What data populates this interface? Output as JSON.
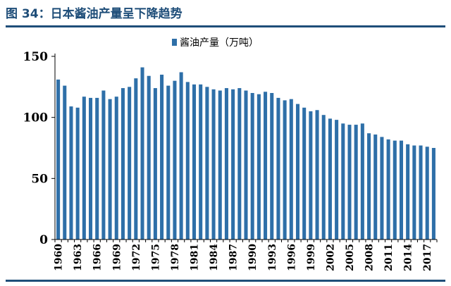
{
  "figure": {
    "title": "图 34：日本酱油产量呈下降趋势"
  },
  "colors": {
    "title": "#1f4e79",
    "bar": "#2e6fa8",
    "axis": "#000000"
  },
  "chart_data": {
    "type": "bar",
    "title": "",
    "xlabel": "",
    "ylabel": "",
    "ylim": [
      0,
      150
    ],
    "yticks": [
      0,
      50,
      100,
      150
    ],
    "grid": false,
    "legend": "top-center",
    "x_tick_labels": [
      "1960",
      "1963",
      "1966",
      "1969",
      "1972",
      "1975",
      "1978",
      "1981",
      "1984",
      "1987",
      "1990",
      "1993",
      "1996",
      "1999",
      "2002",
      "2005",
      "2008",
      "2011",
      "2014",
      "2017"
    ],
    "categories": [
      "1960",
      "1961",
      "1962",
      "1963",
      "1964",
      "1965",
      "1966",
      "1967",
      "1968",
      "1969",
      "1970",
      "1971",
      "1972",
      "1973",
      "1974",
      "1975",
      "1976",
      "1977",
      "1978",
      "1979",
      "1980",
      "1981",
      "1982",
      "1983",
      "1984",
      "1985",
      "1986",
      "1987",
      "1988",
      "1989",
      "1990",
      "1991",
      "1992",
      "1993",
      "1994",
      "1995",
      "1996",
      "1997",
      "1998",
      "1999",
      "2000",
      "2001",
      "2002",
      "2003",
      "2004",
      "2005",
      "2006",
      "2007",
      "2008",
      "2009",
      "2010",
      "2011",
      "2012",
      "2013",
      "2014",
      "2015",
      "2016",
      "2017",
      "2018"
    ],
    "series": [
      {
        "name": "酱油产量（万吨）",
        "values": [
          131,
          126,
          109,
          108,
          117,
          116,
          116,
          122,
          115,
          117,
          124,
          125,
          132,
          141,
          134,
          124,
          135,
          126,
          130,
          137,
          129,
          127,
          127,
          125,
          123,
          122,
          124,
          123,
          124,
          122,
          120,
          119,
          121,
          120,
          116,
          114,
          115,
          111,
          108,
          105,
          106,
          102,
          99,
          98,
          95,
          94,
          94,
          95,
          87,
          86,
          84,
          82,
          81,
          81,
          78,
          77,
          77,
          76,
          75
        ]
      }
    ]
  }
}
